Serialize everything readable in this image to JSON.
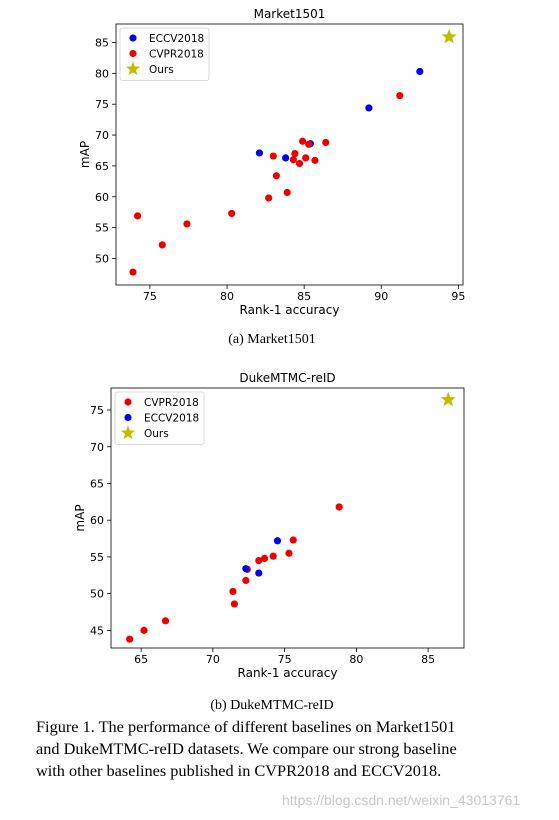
{
  "chart_data": [
    {
      "type": "scatter",
      "title": "Market1501",
      "subcaption": "(a)  Market1501",
      "xlabel": "Rank-1 accuracy",
      "ylabel": "mAP",
      "xlim": [
        72.8,
        95.3
      ],
      "ylim": [
        45.7,
        88.0
      ],
      "xticks": [
        75,
        80,
        85,
        90,
        95
      ],
      "yticks": [
        50,
        55,
        60,
        65,
        70,
        75,
        80,
        85
      ],
      "grid": false,
      "legend_position": "top-left",
      "series": [
        {
          "name": "ECCV2018",
          "color": "#0000ee",
          "marker": "circle",
          "points": [
            [
              82.1,
              67.1
            ],
            [
              83.8,
              66.3
            ],
            [
              85.4,
              68.6
            ],
            [
              89.2,
              74.4
            ],
            [
              92.5,
              80.3
            ]
          ]
        },
        {
          "name": "CVPR2018",
          "color": "#ee0000",
          "marker": "circle",
          "points": [
            [
              73.9,
              47.8
            ],
            [
              74.2,
              56.9
            ],
            [
              75.8,
              52.2
            ],
            [
              77.4,
              55.6
            ],
            [
              80.3,
              57.3
            ],
            [
              82.7,
              59.8
            ],
            [
              83.0,
              66.6
            ],
            [
              83.2,
              63.4
            ],
            [
              83.9,
              60.7
            ],
            [
              84.3,
              66.0
            ],
            [
              84.4,
              67.0
            ],
            [
              84.7,
              65.4
            ],
            [
              84.9,
              69.0
            ],
            [
              85.1,
              66.3
            ],
            [
              85.3,
              68.5
            ],
            [
              85.7,
              65.9
            ],
            [
              86.4,
              68.8
            ],
            [
              91.2,
              76.4
            ]
          ]
        },
        {
          "name": "Ours",
          "color": "#bfbf00",
          "marker": "star",
          "points": [
            [
              94.4,
              85.9
            ]
          ]
        }
      ]
    },
    {
      "type": "scatter",
      "title": "DukeMTMC-reID",
      "subcaption": "(b)  DukeMTMC-reID",
      "xlabel": "Rank-1 accuracy",
      "ylabel": "mAP",
      "xlim": [
        62.9,
        87.5
      ],
      "ylim": [
        42.6,
        78.0
      ],
      "xticks": [
        65,
        70,
        75,
        80,
        85
      ],
      "yticks": [
        45,
        50,
        55,
        60,
        65,
        70,
        75
      ],
      "grid": false,
      "legend_position": "top-left",
      "series": [
        {
          "name": "CVPR2018",
          "color": "#ee0000",
          "marker": "circle",
          "points": [
            [
              64.2,
              43.8
            ],
            [
              65.2,
              45.0
            ],
            [
              66.7,
              46.3
            ],
            [
              71.4,
              50.3
            ],
            [
              71.5,
              48.6
            ],
            [
              72.3,
              51.8
            ],
            [
              72.4,
              53.3
            ],
            [
              73.2,
              54.5
            ],
            [
              73.6,
              54.8
            ],
            [
              74.2,
              55.1
            ],
            [
              75.3,
              55.5
            ],
            [
              75.6,
              57.3
            ],
            [
              78.8,
              61.8
            ]
          ]
        },
        {
          "name": "ECCV2018",
          "color": "#0000ee",
          "marker": "circle",
          "points": [
            [
              72.3,
              53.4
            ],
            [
              73.2,
              52.8
            ],
            [
              74.5,
              57.2
            ]
          ]
        },
        {
          "name": "Ours",
          "color": "#bfbf00",
          "marker": "star",
          "points": [
            [
              86.4,
              76.4
            ]
          ]
        }
      ]
    }
  ],
  "caption_lines": [
    "Figure 1. The performance of different baselines on Market1501",
    "and DukeMTMC-reID datasets.  We compare our strong baseline",
    "with other baselines published in CVPR2018 and ECCV2018."
  ],
  "watermark": "https://blog.csdn.net/weixin_43013761"
}
